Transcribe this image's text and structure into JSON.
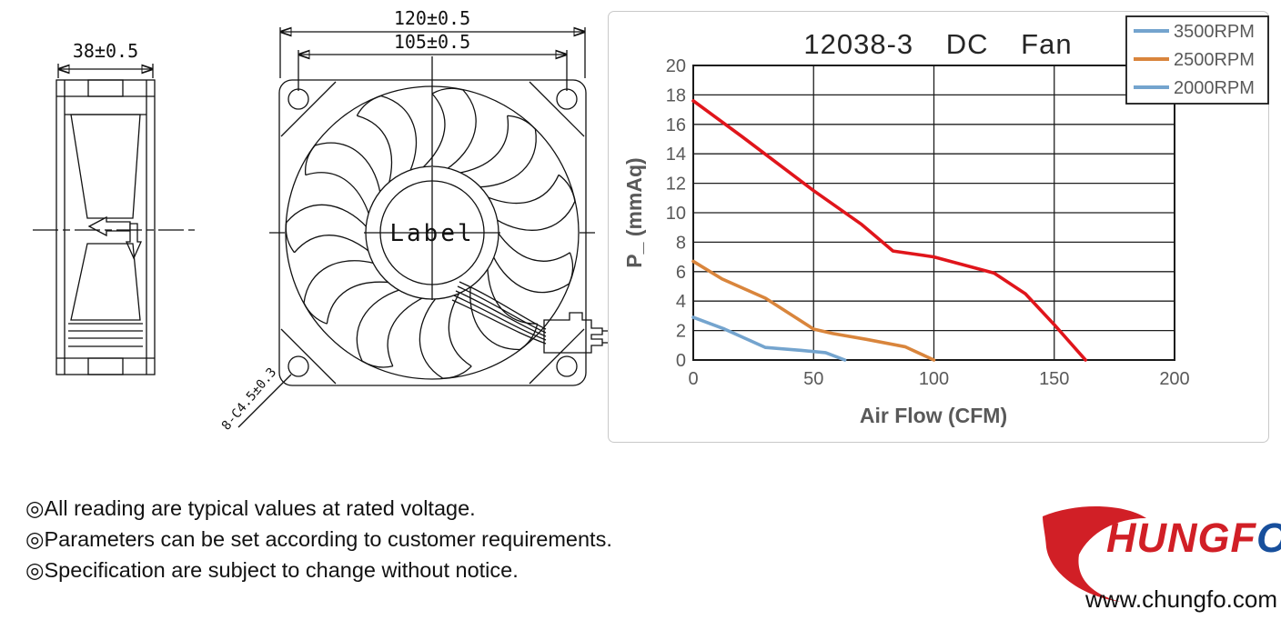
{
  "drawing": {
    "side_view": {
      "width_dim": "38±0.5"
    },
    "front_view": {
      "outer_dim": "120±0.5",
      "hole_pitch_dim": "105±0.5",
      "hub_label": "Label",
      "hole_callout": "8-C4.5±0.3"
    }
  },
  "chart": {
    "title": "12038-3 DC Fan",
    "xlabel": "Air Flow (CFM)",
    "ylabel": "P_ (mmAq)"
  },
  "chart_data": {
    "type": "line",
    "title": "12038-3 DC Fan",
    "xlabel": "Air Flow (CFM)",
    "ylabel": "P_ (mmAq)",
    "xlim": [
      0,
      200
    ],
    "ylim": [
      0,
      20
    ],
    "x_ticks": [
      0,
      50,
      100,
      150,
      200
    ],
    "y_ticks": [
      0,
      2,
      4,
      6,
      8,
      10,
      12,
      14,
      16,
      18,
      20
    ],
    "grid": true,
    "legend_position": "top-right",
    "tick_color": "#595959",
    "series": [
      {
        "name": "3500RPM",
        "color": "#e0151b",
        "legend_color": "#74a4ce",
        "points": [
          [
            0,
            17.6
          ],
          [
            20,
            15.2
          ],
          [
            50,
            11.5
          ],
          [
            70,
            9.2
          ],
          [
            83,
            7.4
          ],
          [
            100,
            7.0
          ],
          [
            125,
            5.9
          ],
          [
            138,
            4.5
          ],
          [
            150,
            2.4
          ],
          [
            163,
            0
          ]
        ]
      },
      {
        "name": "2500RPM",
        "color": "#d9853c",
        "legend_color": "#d9853c",
        "points": [
          [
            0,
            6.7
          ],
          [
            12,
            5.5
          ],
          [
            30,
            4.2
          ],
          [
            50,
            2.1
          ],
          [
            58,
            1.8
          ],
          [
            72,
            1.4
          ],
          [
            88,
            0.9
          ],
          [
            100,
            0
          ]
        ]
      },
      {
        "name": "2000RPM",
        "color": "#74a4ce",
        "legend_color": "#74a4ce",
        "points": [
          [
            0,
            2.9
          ],
          [
            13,
            2.1
          ],
          [
            30,
            0.85
          ],
          [
            45,
            0.65
          ],
          [
            55,
            0.5
          ],
          [
            63,
            0
          ]
        ]
      }
    ]
  },
  "notes": [
    "◎All reading are typical values at rated voltage.",
    "◎Parameters can be set according to customer requirements.",
    "◎Specification are subject to change without notice."
  ],
  "footer": {
    "logo_red": "HUNGF",
    "logo_blue": "O",
    "website": "www.chungfo.com"
  }
}
